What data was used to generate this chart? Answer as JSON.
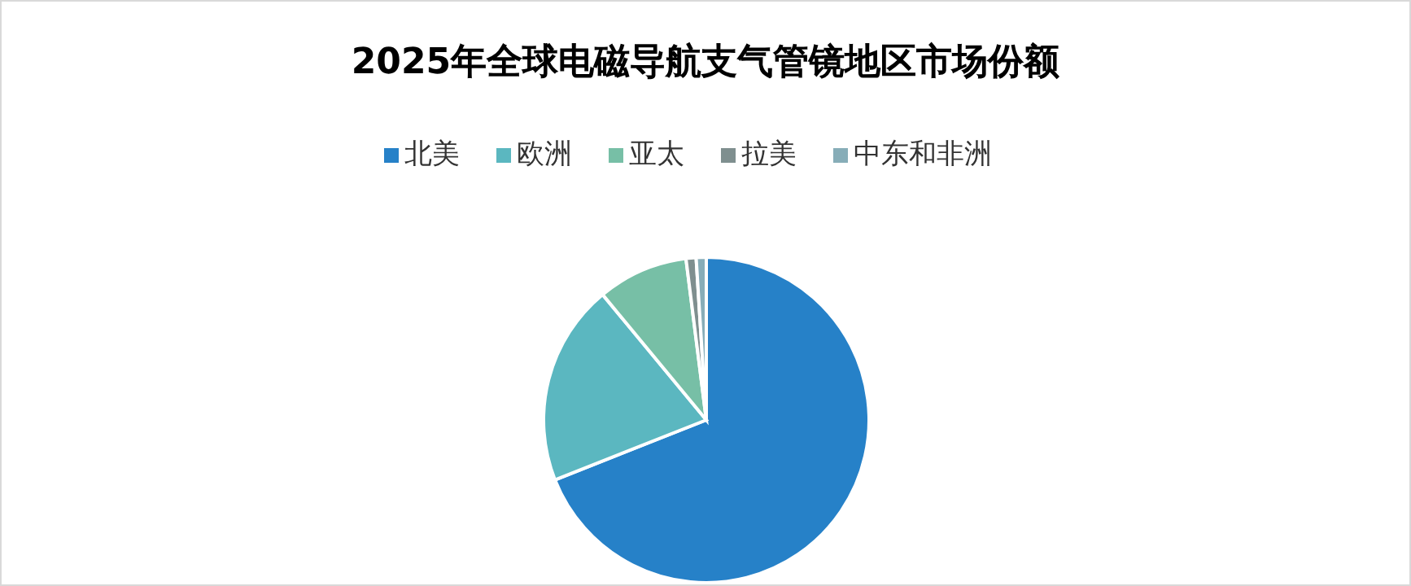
{
  "chart_data": {
    "type": "pie",
    "title": "2025年全球电磁导航支气管镜地区市场份额",
    "categories": [
      "北美",
      "欧洲",
      "亚太",
      "拉美",
      "中东和非洲"
    ],
    "values": [
      69,
      20,
      9,
      1,
      1
    ],
    "colors": [
      "#2681c8",
      "#5bb7c0",
      "#77bfa6",
      "#7f8f8f",
      "#87adb8"
    ],
    "legend": "top"
  }
}
